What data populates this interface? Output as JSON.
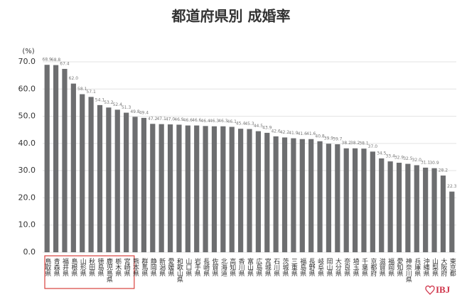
{
  "chart_data": {
    "type": "bar",
    "title": "都道府県別 成婚率",
    "y_unit": "(%)",
    "categories": [
      "鳥取県",
      "青森県",
      "福井県",
      "島根県",
      "山形県",
      "秋田県",
      "徳島県",
      "鹿児島県",
      "栃木県",
      "宮崎県",
      "熊本県",
      "群馬県",
      "静岡県",
      "新潟県",
      "愛媛県",
      "和歌山県",
      "山口県",
      "岩手県",
      "長崎県",
      "佐賀県",
      "北海道",
      "高知県",
      "香川県",
      "富山県",
      "広島県",
      "宮城県",
      "石川県",
      "茨城県",
      "三重県",
      "福島県",
      "長野県",
      "岐阜県",
      "岡山県",
      "大分県",
      "奈良県",
      "埼玉県",
      "千葉県",
      "京都府",
      "滋賀県",
      "福岡県",
      "愛知県",
      "神奈川県",
      "兵庫県",
      "沖縄県",
      "山梨県",
      "大阪府",
      "東京都"
    ],
    "values": [
      68.9,
      68.8,
      67.4,
      62.0,
      58.1,
      57.1,
      54.1,
      53.2,
      52.4,
      51.3,
      49.8,
      49.4,
      47.2,
      47.1,
      47.0,
      46.9,
      46.6,
      46.6,
      46.4,
      46.3,
      46.3,
      46.1,
      45.4,
      45.3,
      44.5,
      43.9,
      42.6,
      42.2,
      41.9,
      41.6,
      41.6,
      40.8,
      39.9,
      39.7,
      38.2,
      38.2,
      38.1,
      37.0,
      34.5,
      33.4,
      32.9,
      32.5,
      32.0,
      31.1,
      30.9,
      28.2,
      22.3
    ],
    "value_labels": [
      "68.9",
      "68.8",
      "67.4",
      "62.0",
      "58.1",
      "57.1",
      "54.1",
      "53.2",
      "52.4",
      "51.3",
      "49.8",
      "49.4",
      "47.2",
      "47.1",
      "47.0",
      "46.9",
      "46.6",
      "46.6",
      "46.4",
      "46.3",
      "46.3",
      "46.1",
      "45.4",
      "45.3",
      "44.5",
      "43.9",
      "42.6",
      "42.2",
      "41.9",
      "41.6",
      "41.6",
      "40.8",
      "39.9",
      "39.7",
      "38.2",
      "38.2",
      "38.1",
      "37.0",
      "34.5",
      "33.4",
      "32.9",
      "32.5",
      "32.0",
      "31.1",
      "30.9",
      "28.2",
      "22.3"
    ],
    "color": "#6d6e70",
    "ylim": [
      0,
      70
    ],
    "yticks": [
      {
        "value": 0,
        "label": "0.0"
      },
      {
        "value": 10,
        "label": "10.0"
      },
      {
        "value": 20,
        "label": "20.0"
      },
      {
        "value": 30,
        "label": "30.0"
      },
      {
        "value": 40,
        "label": "40.0"
      },
      {
        "value": 50,
        "label": "50.0"
      },
      {
        "value": 60,
        "label": "60.0"
      },
      {
        "value": 70,
        "label": "70.0"
      }
    ],
    "grid": true
  },
  "logo": {
    "text": "IBJ"
  }
}
